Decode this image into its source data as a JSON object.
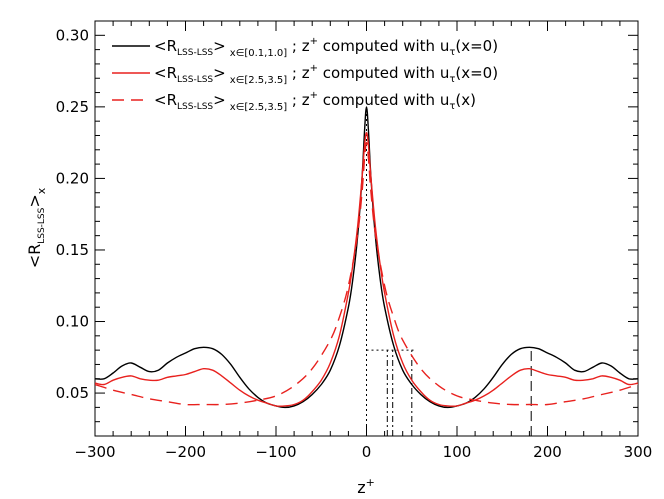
{
  "chart_data": {
    "type": "line",
    "xlabel": "z",
    "xlabel_sup": "+",
    "ylabel": "<R",
    "ylabel_sub": "LSS-LSS",
    "ylabel_tail": ">",
    "ylabel_sub2": "x",
    "xlim": [
      -300,
      300
    ],
    "ylim": [
      0.02,
      0.31
    ],
    "xticks": [
      -300,
      -200,
      -100,
      0,
      100,
      200,
      300
    ],
    "xtick_labels": [
      "−300",
      "−200",
      "−100",
      "0",
      "100",
      "200",
      "300"
    ],
    "yticks": [
      0.05,
      0.1,
      0.15,
      0.2,
      0.25,
      0.3
    ],
    "ytick_labels": [
      "0.05",
      "0.10",
      "0.15",
      "0.20",
      "0.25",
      "0.30"
    ],
    "legend_position": "top-left",
    "legend": [
      {
        "pre": "<R",
        "sub": "LSS-LSS",
        "mid": ">",
        "range": "x∈[0.1,1.0]",
        "post": " ; z",
        "sup": "+",
        "tail": " computed with u",
        "sub2": "τ",
        "end": "(x=0)"
      },
      {
        "pre": "<R",
        "sub": "LSS-LSS",
        "mid": ">",
        "range": "x∈[2.5,3.5]",
        "post": " ; z",
        "sup": "+",
        "tail": " computed with u",
        "sub2": "τ",
        "end": "(x=0)"
      },
      {
        "pre": "<R",
        "sub": "LSS-LSS",
        "mid": ">",
        "range": "x∈[2.5,3.5]",
        "post": " ; z",
        "sup": "+",
        "tail": " computed with u",
        "sub2": "τ",
        "end": "(x)"
      }
    ],
    "series": [
      {
        "color": "#000000",
        "dash": "none",
        "x": [
          -300,
          -290,
          -280,
          -270,
          -260,
          -250,
          -240,
          -230,
          -220,
          -210,
          -200,
          -190,
          -180,
          -170,
          -160,
          -150,
          -140,
          -130,
          -120,
          -110,
          -100,
          -90,
          -80,
          -70,
          -60,
          -50,
          -40,
          -30,
          -20,
          -15,
          -10,
          -5,
          -2,
          0,
          2,
          5,
          10,
          15,
          20,
          30,
          40,
          50,
          60,
          70,
          80,
          90,
          100,
          110,
          120,
          130,
          140,
          150,
          160,
          170,
          180,
          190,
          200,
          210,
          220,
          230,
          240,
          250,
          260,
          270,
          280,
          290,
          300
        ],
        "y": [
          0.06,
          0.06,
          0.064,
          0.069,
          0.071,
          0.068,
          0.065,
          0.066,
          0.071,
          0.075,
          0.078,
          0.081,
          0.082,
          0.081,
          0.077,
          0.07,
          0.061,
          0.053,
          0.047,
          0.043,
          0.041,
          0.04,
          0.041,
          0.044,
          0.049,
          0.056,
          0.066,
          0.083,
          0.11,
          0.13,
          0.158,
          0.2,
          0.235,
          0.25,
          0.235,
          0.2,
          0.158,
          0.13,
          0.11,
          0.083,
          0.066,
          0.056,
          0.049,
          0.044,
          0.041,
          0.04,
          0.041,
          0.043,
          0.047,
          0.053,
          0.061,
          0.07,
          0.077,
          0.081,
          0.082,
          0.081,
          0.078,
          0.075,
          0.071,
          0.066,
          0.065,
          0.068,
          0.071,
          0.069,
          0.064,
          0.06,
          0.06
        ]
      },
      {
        "color": "#e8211e",
        "dash": "none",
        "x": [
          -300,
          -290,
          -280,
          -270,
          -260,
          -250,
          -240,
          -230,
          -220,
          -210,
          -200,
          -190,
          -180,
          -170,
          -160,
          -150,
          -140,
          -130,
          -120,
          -110,
          -100,
          -90,
          -80,
          -70,
          -60,
          -50,
          -40,
          -30,
          -20,
          -15,
          -10,
          -5,
          -2,
          0,
          2,
          5,
          10,
          15,
          20,
          30,
          40,
          50,
          60,
          70,
          80,
          90,
          100,
          110,
          120,
          130,
          140,
          150,
          160,
          170,
          180,
          190,
          200,
          210,
          220,
          230,
          240,
          250,
          260,
          270,
          280,
          290,
          300
        ],
        "y": [
          0.057,
          0.056,
          0.059,
          0.061,
          0.062,
          0.06,
          0.059,
          0.059,
          0.061,
          0.062,
          0.063,
          0.065,
          0.067,
          0.066,
          0.062,
          0.057,
          0.052,
          0.048,
          0.045,
          0.043,
          0.041,
          0.041,
          0.042,
          0.045,
          0.051,
          0.059,
          0.071,
          0.09,
          0.12,
          0.14,
          0.165,
          0.2,
          0.224,
          0.232,
          0.224,
          0.2,
          0.165,
          0.14,
          0.12,
          0.09,
          0.071,
          0.059,
          0.051,
          0.045,
          0.042,
          0.041,
          0.041,
          0.043,
          0.045,
          0.048,
          0.052,
          0.057,
          0.062,
          0.066,
          0.067,
          0.065,
          0.063,
          0.062,
          0.061,
          0.059,
          0.059,
          0.06,
          0.062,
          0.061,
          0.059,
          0.056,
          0.057
        ]
      },
      {
        "color": "#e8211e",
        "dash": "12,7",
        "x": [
          -300,
          -280,
          -260,
          -240,
          -220,
          -200,
          -180,
          -160,
          -140,
          -120,
          -100,
          -80,
          -60,
          -40,
          -30,
          -20,
          -10,
          -5,
          -2,
          0,
          2,
          5,
          10,
          20,
          30,
          40,
          60,
          80,
          100,
          120,
          140,
          160,
          180,
          200,
          220,
          240,
          260,
          280,
          300
        ],
        "y": [
          0.056,
          0.052,
          0.049,
          0.046,
          0.044,
          0.042,
          0.042,
          0.042,
          0.043,
          0.045,
          0.048,
          0.055,
          0.067,
          0.087,
          0.103,
          0.125,
          0.16,
          0.19,
          0.215,
          0.225,
          0.215,
          0.19,
          0.16,
          0.125,
          0.103,
          0.087,
          0.067,
          0.055,
          0.048,
          0.045,
          0.043,
          0.042,
          0.042,
          0.042,
          0.044,
          0.046,
          0.049,
          0.052,
          0.056
        ]
      }
    ],
    "reference_lines": [
      {
        "color": "#000000",
        "dash": "2,3",
        "points": [
          [
            0,
            0.02
          ],
          [
            0,
            0.25
          ]
        ]
      },
      {
        "color": "#000000",
        "dash": "2,3",
        "points": [
          [
            0,
            0.08
          ],
          [
            52,
            0.08
          ]
        ]
      },
      {
        "color": "#000000",
        "dash": "6,3,2,3",
        "points": [
          [
            23,
            0.02
          ],
          [
            23,
            0.08
          ]
        ]
      },
      {
        "color": "#000000",
        "dash": "6,3,2,3",
        "points": [
          [
            29,
            0.02
          ],
          [
            29,
            0.08
          ]
        ]
      },
      {
        "color": "#000000",
        "dash": "6,3,2,3",
        "points": [
          [
            50,
            0.02
          ],
          [
            50,
            0.08
          ]
        ]
      },
      {
        "color": "#000000",
        "dash": "10,5",
        "points": [
          [
            182,
            0.02
          ],
          [
            182,
            0.082
          ]
        ]
      }
    ]
  }
}
